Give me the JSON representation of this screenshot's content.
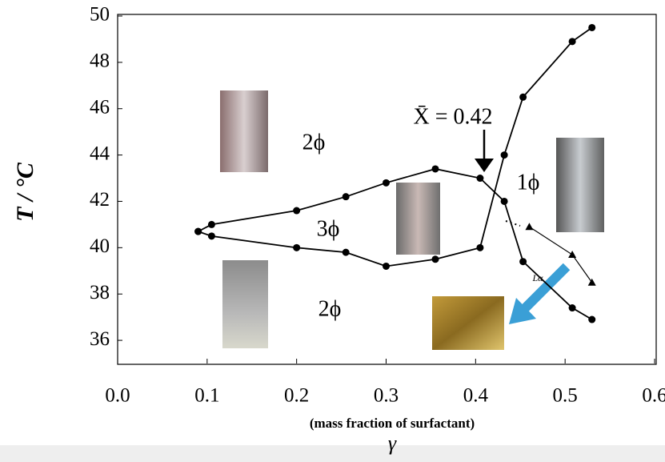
{
  "chart_data": {
    "type": "line",
    "ylabel": "T / °C",
    "xlabel": "(mass fraction of surfactant)",
    "xlabel_symbol": "γ",
    "xlim": [
      0,
      0.6
    ],
    "ylim": [
      35,
      50
    ],
    "xticks": [
      {
        "value": 0,
        "label": "0.0"
      },
      0.1,
      0.2,
      0.3,
      0.4,
      0.5,
      0.6
    ],
    "yticks": [
      36,
      38,
      40,
      42,
      44,
      46,
      48,
      50
    ],
    "series": [
      {
        "color": "#000000",
        "marker": "circle",
        "x": [
          0.09,
          0.105,
          0.2,
          0.255,
          0.3,
          0.355,
          0.405,
          0.432,
          0.453,
          0.508,
          0.53
        ],
        "values": [
          40.7,
          41.0,
          41.6,
          42.2,
          42.8,
          43.4,
          43.0,
          42.0,
          39.4,
          37.4,
          36.9
        ]
      },
      {
        "color": "#000000",
        "marker": "circle",
        "x": [
          0.09,
          0.105,
          0.2,
          0.255,
          0.3,
          0.355,
          0.405,
          0.432,
          0.453,
          0.508,
          0.53
        ],
        "values": [
          40.7,
          40.5,
          40.0,
          39.8,
          39.2,
          39.5,
          40.0,
          44.0,
          46.5,
          48.9,
          49.5
        ]
      },
      {
        "color": "#000000",
        "marker": "triangle",
        "x": [
          0.46,
          0.508,
          0.53
        ],
        "values": [
          40.9,
          39.7,
          38.5
        ]
      }
    ],
    "annotations": [
      "2ϕ",
      "3ϕ",
      "2ϕ",
      "1ϕ",
      "Lα",
      "X̄ = 0.42"
    ]
  }
}
